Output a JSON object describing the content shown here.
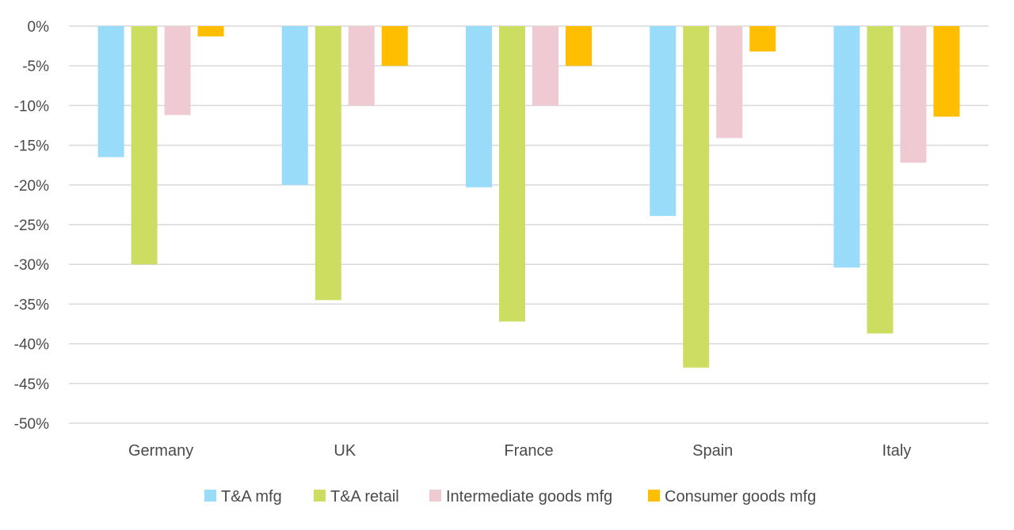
{
  "chart_data": {
    "type": "bar",
    "title": "",
    "xlabel": "",
    "ylabel": "",
    "categories": [
      "Germany",
      "UK",
      "France",
      "Spain",
      "Italy"
    ],
    "series": [
      {
        "name": "T&A mfg",
        "color": "#99dcfa",
        "values": [
          -16.5,
          -20.0,
          -20.3,
          -23.9,
          -30.4
        ]
      },
      {
        "name": "T&A retail",
        "color": "#cddd62",
        "values": [
          -30.0,
          -34.5,
          -37.2,
          -43.0,
          -38.7
        ]
      },
      {
        "name": "Intermediate goods mfg",
        "color": "#efcad3",
        "values": [
          -11.2,
          -10.0,
          -10.0,
          -14.1,
          -17.2
        ]
      },
      {
        "name": "Consumer goods mfg",
        "color": "#ffbe00",
        "values": [
          -1.3,
          -5.0,
          -5.0,
          -3.2,
          -11.4
        ]
      }
    ],
    "ylim": [
      -50,
      0
    ],
    "yticks": [
      0,
      -5,
      -10,
      -15,
      -20,
      -25,
      -30,
      -35,
      -40,
      -45,
      -50
    ],
    "ytick_labels": [
      "0%",
      "-5%",
      "-10%",
      "-15%",
      "-20%",
      "-25%",
      "-30%",
      "-35%",
      "-40%",
      "-45%",
      "-50%"
    ],
    "grid": true,
    "legend_position": "bottom"
  }
}
